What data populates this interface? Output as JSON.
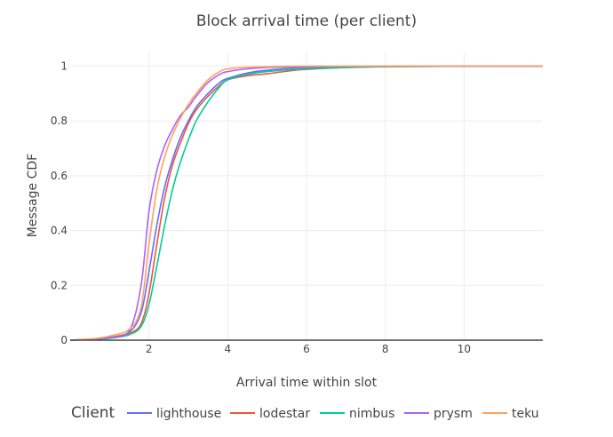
{
  "chart_data": {
    "type": "line",
    "title": "Block arrival time (per client)",
    "xlabel": "Arrival time within slot",
    "ylabel": "Message CDF",
    "xlim": [
      0,
      12
    ],
    "ylim": [
      0,
      1.05
    ],
    "xticks": [
      2,
      4,
      6,
      8,
      10
    ],
    "yticks": [
      0,
      0.2,
      0.4,
      0.6,
      0.8,
      1
    ],
    "ytick_labels": [
      "0",
      "0.2",
      "0.4",
      "0.6",
      "0.8",
      "1"
    ],
    "grid": true,
    "legend": {
      "title": "Client",
      "position": "bottom"
    },
    "series": [
      {
        "name": "lighthouse",
        "color": "#636efa",
        "x": [
          0,
          0.5,
          1,
          1.5,
          1.8,
          2.0,
          2.2,
          2.4,
          2.6,
          2.8,
          3.0,
          3.2,
          3.5,
          3.8,
          4.0,
          4.5,
          5,
          6,
          8,
          12
        ],
        "y": [
          0,
          0.003,
          0.01,
          0.03,
          0.1,
          0.25,
          0.42,
          0.56,
          0.66,
          0.74,
          0.8,
          0.85,
          0.9,
          0.94,
          0.955,
          0.975,
          0.985,
          0.995,
          0.999,
          1.0
        ]
      },
      {
        "name": "lodestar",
        "color": "#ef553b",
        "x": [
          0,
          0.5,
          1,
          1.5,
          1.8,
          2.0,
          2.2,
          2.4,
          2.6,
          2.8,
          3.0,
          3.2,
          3.5,
          3.8,
          4.0,
          4.5,
          5,
          6,
          8,
          12
        ],
        "y": [
          0,
          0.004,
          0.01,
          0.025,
          0.06,
          0.17,
          0.35,
          0.52,
          0.64,
          0.72,
          0.79,
          0.84,
          0.89,
          0.93,
          0.95,
          0.965,
          0.972,
          0.988,
          0.998,
          1.0
        ]
      },
      {
        "name": "nimbus",
        "color": "#00cc96",
        "x": [
          0,
          0.5,
          1,
          1.5,
          1.8,
          2.0,
          2.2,
          2.4,
          2.6,
          2.8,
          3.0,
          3.2,
          3.5,
          3.8,
          4.0,
          4.5,
          5,
          6,
          8,
          12
        ],
        "y": [
          0,
          0.002,
          0.007,
          0.02,
          0.05,
          0.13,
          0.27,
          0.42,
          0.55,
          0.65,
          0.73,
          0.8,
          0.87,
          0.925,
          0.95,
          0.97,
          0.98,
          0.99,
          0.998,
          1.0
        ]
      },
      {
        "name": "prysm",
        "color": "#ab63fa",
        "x": [
          0,
          0.5,
          1,
          1.5,
          1.8,
          2.0,
          2.2,
          2.4,
          2.6,
          2.8,
          3.0,
          3.2,
          3.5,
          3.8,
          4.0,
          4.5,
          5,
          6,
          8,
          12
        ],
        "y": [
          0,
          0.003,
          0.01,
          0.035,
          0.2,
          0.47,
          0.62,
          0.71,
          0.77,
          0.82,
          0.85,
          0.89,
          0.94,
          0.97,
          0.98,
          0.99,
          0.995,
          0.998,
          1.0,
          1.0
        ]
      },
      {
        "name": "teku",
        "color": "#ffa15a",
        "x": [
          0,
          0.5,
          1,
          1.5,
          1.8,
          2.0,
          2.2,
          2.4,
          2.6,
          2.8,
          3.0,
          3.2,
          3.5,
          3.8,
          4.0,
          4.5,
          5,
          6,
          8,
          12
        ],
        "y": [
          0,
          0.004,
          0.015,
          0.04,
          0.12,
          0.35,
          0.55,
          0.67,
          0.75,
          0.81,
          0.86,
          0.9,
          0.95,
          0.98,
          0.99,
          0.996,
          0.998,
          1.0,
          1.0,
          1.0
        ]
      }
    ]
  }
}
